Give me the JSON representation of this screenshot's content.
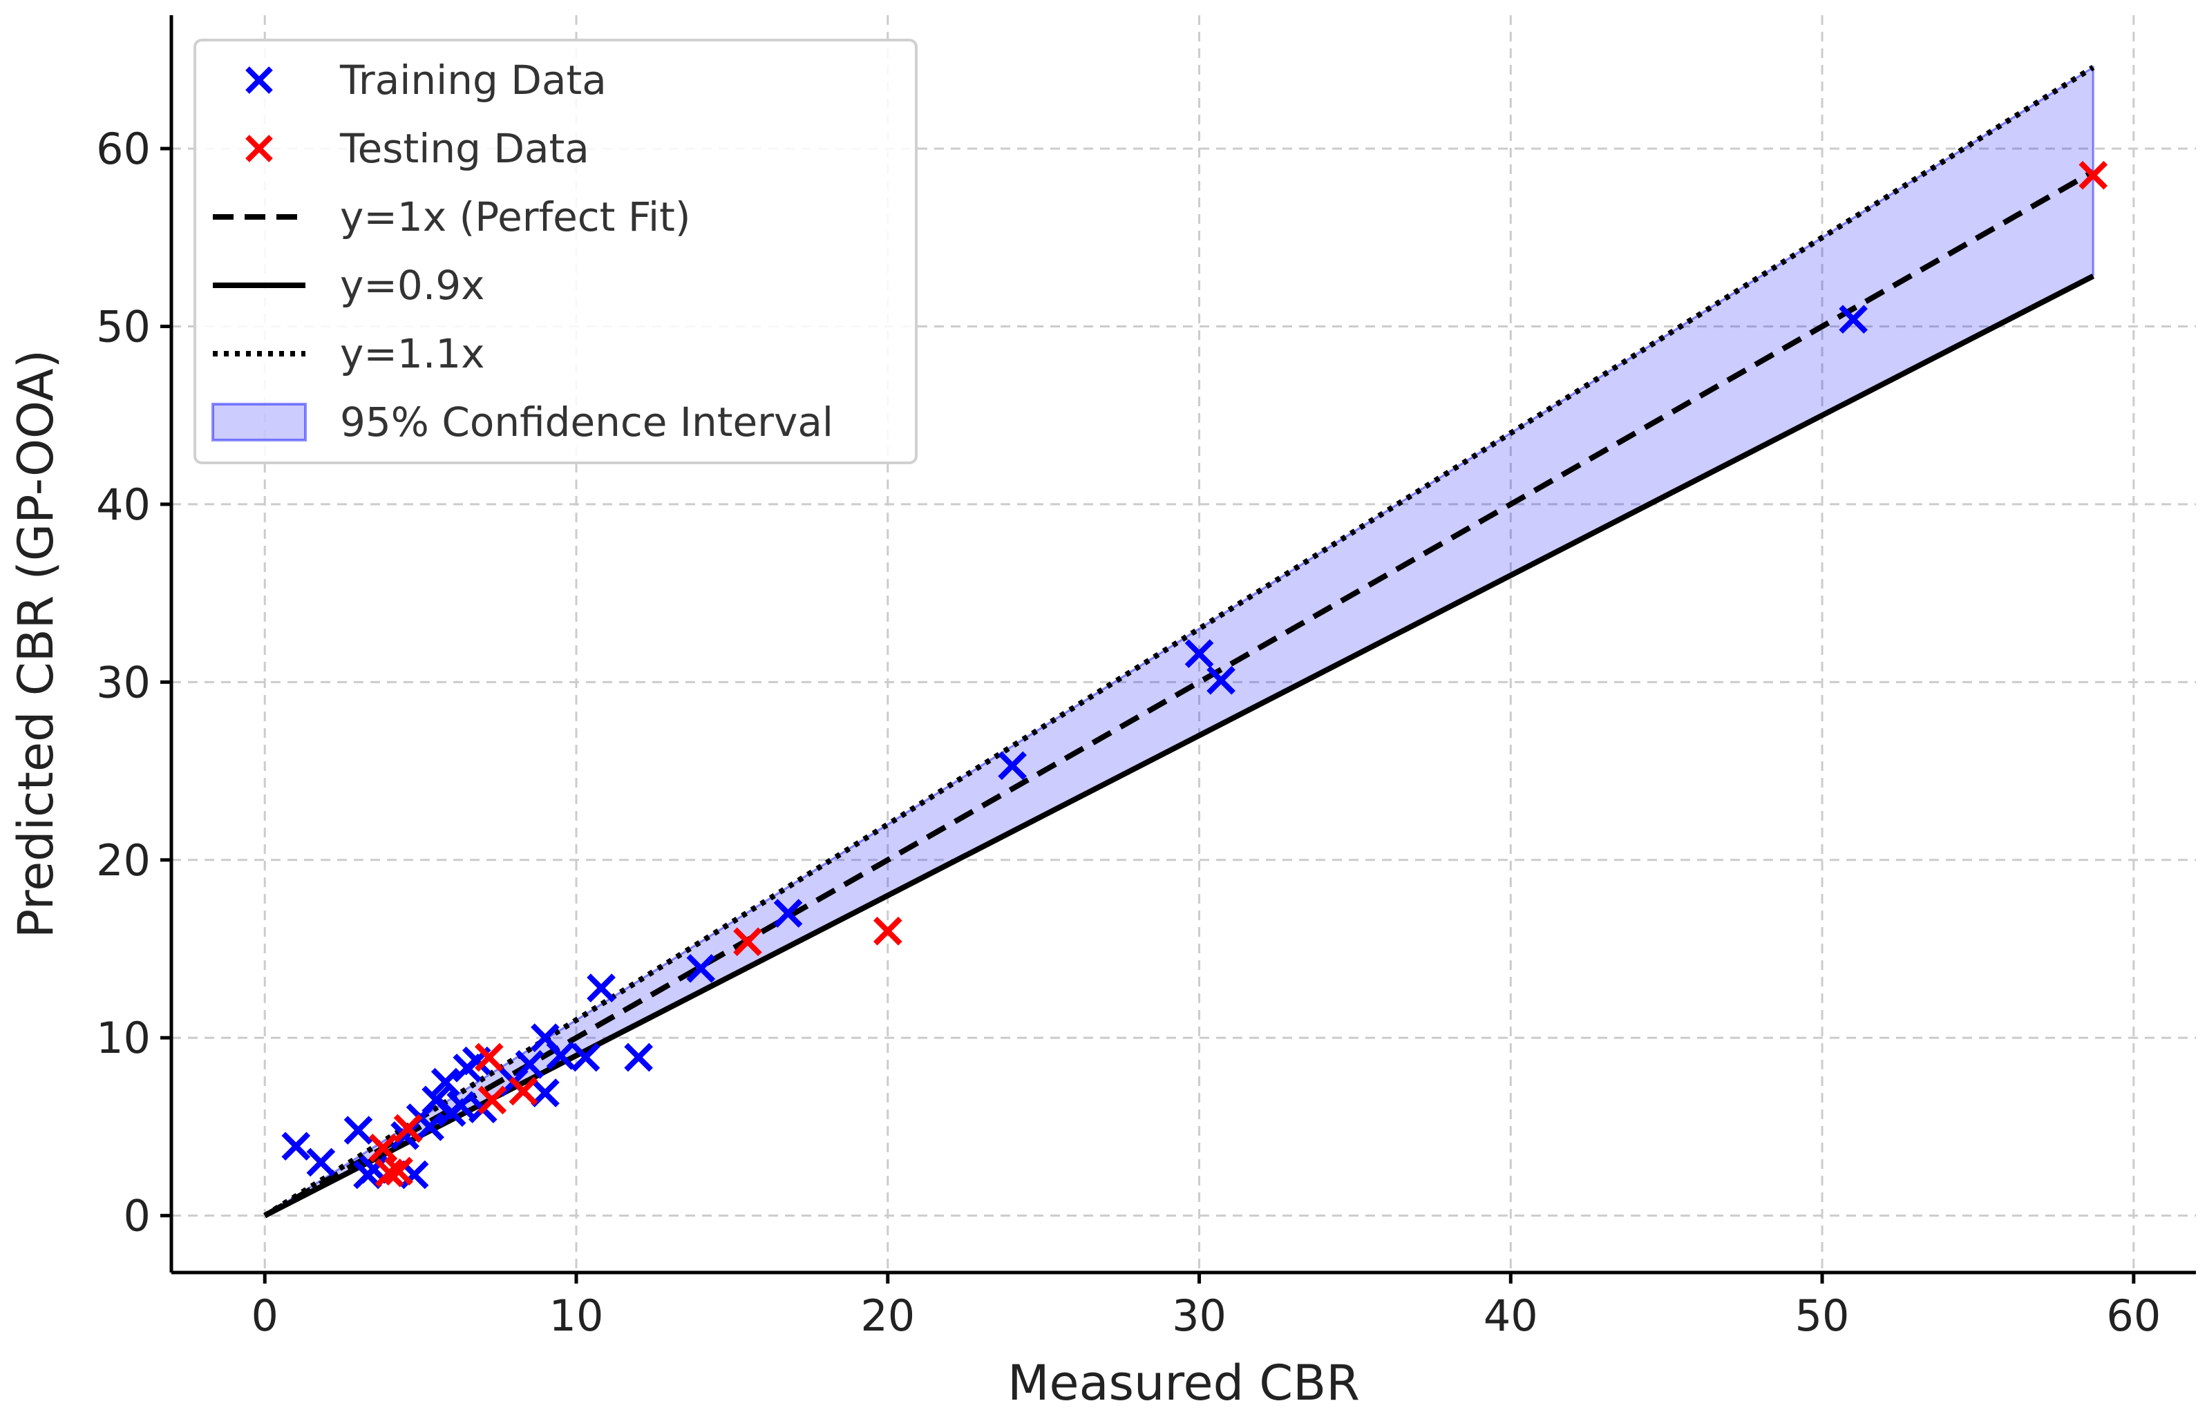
{
  "chart_data": {
    "type": "scatter",
    "xlabel": "Measured CBR",
    "ylabel": "Predicted CBR (GP-OOA)",
    "xlim": [
      -3,
      62
    ],
    "ylim": [
      -3.2,
      67.5
    ],
    "xticks": [
      0,
      10,
      20,
      30,
      40,
      50,
      60
    ],
    "yticks": [
      0,
      10,
      20,
      30,
      40,
      50,
      60
    ],
    "x_tick_labels": [
      "0",
      "10",
      "20",
      "30",
      "40",
      "50",
      "60"
    ],
    "y_tick_labels": [
      "0",
      "10",
      "20",
      "30",
      "40",
      "50",
      "60"
    ],
    "grid": true,
    "legend_position": "top-left",
    "line_x_range": [
      0,
      58.7
    ],
    "series": [
      {
        "name": "Training Data",
        "kind": "scatter",
        "marker": "x",
        "color": "#0000ff",
        "points": [
          [
            1.0,
            3.9
          ],
          [
            1.8,
            3.0
          ],
          [
            3.0,
            4.8
          ],
          [
            3.3,
            2.3
          ],
          [
            3.5,
            2.6
          ],
          [
            4.5,
            4.5
          ],
          [
            4.8,
            2.3
          ],
          [
            5.0,
            5.5
          ],
          [
            5.3,
            5.0
          ],
          [
            5.5,
            6.5
          ],
          [
            5.8,
            7.5
          ],
          [
            6.0,
            5.8
          ],
          [
            6.3,
            6.2
          ],
          [
            6.5,
            8.3
          ],
          [
            6.8,
            8.7
          ],
          [
            7.0,
            6.0
          ],
          [
            8.0,
            7.5
          ],
          [
            8.5,
            8.5
          ],
          [
            9.0,
            6.9
          ],
          [
            9.0,
            10.0
          ],
          [
            9.5,
            9.0
          ],
          [
            10.3,
            8.9
          ],
          [
            10.8,
            12.8
          ],
          [
            12.0,
            8.9
          ],
          [
            14.0,
            13.9
          ],
          [
            16.8,
            17.0
          ],
          [
            24.0,
            25.3
          ],
          [
            30.0,
            31.6
          ],
          [
            30.7,
            30.1
          ],
          [
            51.0,
            50.4
          ]
        ]
      },
      {
        "name": "Testing Data",
        "kind": "scatter",
        "marker": "x",
        "color": "#ff0000",
        "points": [
          [
            3.8,
            3.8
          ],
          [
            4.0,
            2.4
          ],
          [
            4.3,
            2.5
          ],
          [
            4.6,
            4.9
          ],
          [
            7.2,
            8.9
          ],
          [
            7.3,
            6.5
          ],
          [
            8.3,
            7.0
          ],
          [
            15.5,
            15.4
          ],
          [
            20.0,
            16.0
          ],
          [
            58.7,
            58.5
          ]
        ]
      },
      {
        "name": "y=1x (Perfect Fit)",
        "kind": "line",
        "slope": 1.0,
        "style": "dashed",
        "color": "#000000"
      },
      {
        "name": "y=0.9x",
        "kind": "line",
        "slope": 0.9,
        "style": "solid",
        "color": "#000000"
      },
      {
        "name": "y=1.1x",
        "kind": "line",
        "slope": 1.1,
        "style": "dotted",
        "color": "#000000"
      },
      {
        "name": "95% Confidence Interval",
        "kind": "band",
        "lower_slope": 0.9,
        "upper_slope": 1.1,
        "color": "#0000ff",
        "opacity": 0.2
      }
    ]
  }
}
